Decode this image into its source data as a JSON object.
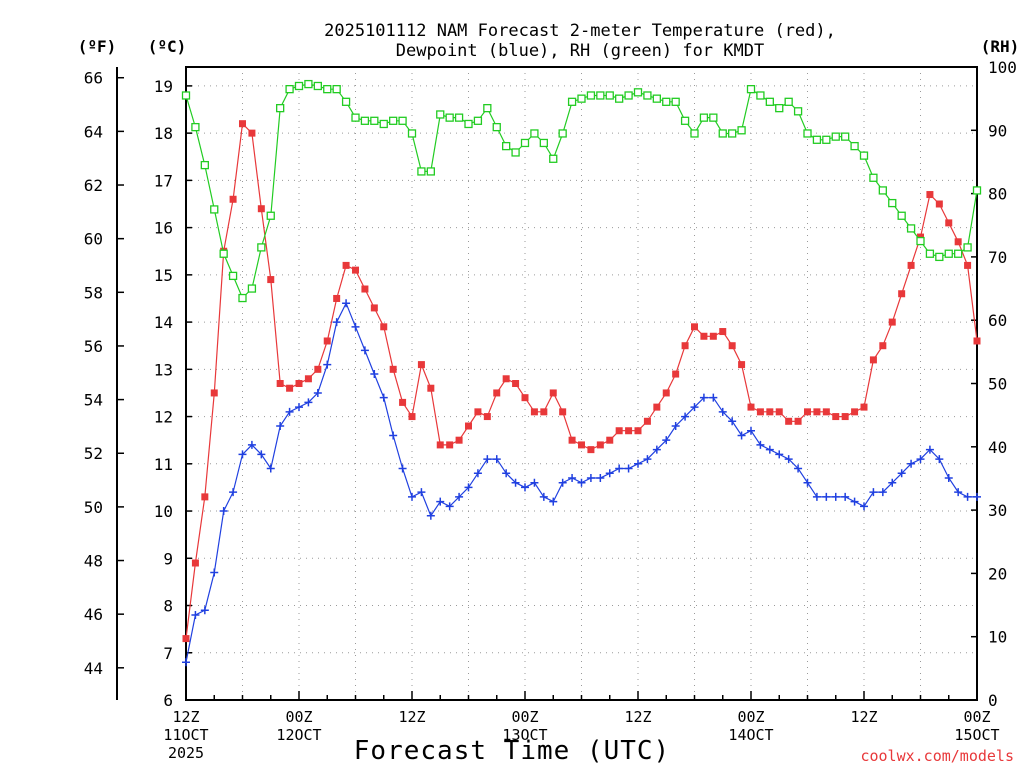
{
  "chart_data": {
    "type": "line",
    "title": "2025101112 NAM Forecast 2-meter Temperature (red),\nDewpoint (blue), RH (green) for KMDT",
    "xlabel": "Forecast Time (UTC)",
    "axes": {
      "left_outer": {
        "label": "(ºF)",
        "range": [
          42.8,
          66.4
        ],
        "ticks": [
          44,
          46,
          48,
          50,
          52,
          54,
          56,
          58,
          60,
          62,
          64,
          66
        ]
      },
      "left_inner": {
        "label": "(ºC)",
        "range": [
          6,
          19.4
        ],
        "ticks": [
          6,
          7,
          8,
          9,
          10,
          11,
          12,
          13,
          14,
          15,
          16,
          17,
          18,
          19
        ]
      },
      "right": {
        "label": "(RH)",
        "range": [
          0,
          100
        ],
        "ticks": [
          0,
          10,
          20,
          30,
          40,
          50,
          60,
          70,
          80,
          90,
          100
        ]
      }
    },
    "x_ticks": [
      {
        "hour": 0,
        "lines": [
          "12Z",
          "11OCT",
          "2025"
        ]
      },
      {
        "hour": 12,
        "lines": [
          "00Z",
          "12OCT"
        ]
      },
      {
        "hour": 24,
        "lines": [
          "12Z"
        ]
      },
      {
        "hour": 36,
        "lines": [
          "00Z",
          "13OCT"
        ]
      },
      {
        "hour": 48,
        "lines": [
          "12Z"
        ]
      },
      {
        "hour": 60,
        "lines": [
          "00Z",
          "14OCT"
        ]
      },
      {
        "hour": 72,
        "lines": [
          "12Z"
        ]
      },
      {
        "hour": 84,
        "lines": [
          "00Z",
          "15OCT"
        ]
      }
    ],
    "x_range_hours": [
      0,
      84
    ],
    "grid": true,
    "series": [
      {
        "name": "Temperature",
        "axis": "left_inner",
        "color": "#e8383a",
        "marker": "filled-square",
        "hours": [
          0,
          1,
          2,
          3,
          4,
          5,
          6,
          7,
          8,
          9,
          10,
          11,
          12,
          13,
          14,
          15,
          16,
          17,
          18,
          19,
          20,
          21,
          22,
          23,
          24,
          25,
          26,
          27,
          28,
          29,
          30,
          31,
          32,
          33,
          34,
          35,
          36,
          37,
          38,
          39,
          40,
          41,
          42,
          43,
          44,
          45,
          46,
          47,
          48,
          49,
          50,
          51,
          52,
          53,
          54,
          55,
          56,
          57,
          58,
          59,
          60,
          61,
          62,
          63,
          64,
          65,
          66,
          67,
          68,
          69,
          70,
          71,
          72,
          73,
          74,
          75,
          76,
          77,
          78,
          79,
          80,
          81,
          82,
          83,
          84
        ],
        "values": [
          7.3,
          8.9,
          10.3,
          12.5,
          15.5,
          16.6,
          18.2,
          18.0,
          16.4,
          14.9,
          12.7,
          12.6,
          12.7,
          12.8,
          13.0,
          13.6,
          14.5,
          15.2,
          15.1,
          14.7,
          14.3,
          13.9,
          13.0,
          12.3,
          12.0,
          13.1,
          12.6,
          11.4,
          11.4,
          11.5,
          11.8,
          12.1,
          12.0,
          12.5,
          12.8,
          12.7,
          12.4,
          12.1,
          12.1,
          12.5,
          12.1,
          11.5,
          11.4,
          11.3,
          11.4,
          11.5,
          11.7,
          11.7,
          11.7,
          11.9,
          12.2,
          12.5,
          12.9,
          13.5,
          13.9,
          13.7,
          13.7,
          13.8,
          13.5,
          13.1,
          12.2,
          12.1,
          12.1,
          12.1,
          11.9,
          11.9,
          12.1,
          12.1,
          12.1,
          12.0,
          12.0,
          12.1,
          12.2,
          13.2,
          13.5,
          14.0,
          14.6,
          15.2,
          15.8,
          16.7,
          16.5,
          16.1,
          15.7,
          15.2,
          13.6
        ]
      },
      {
        "name": "Dewpoint",
        "axis": "left_inner",
        "color": "#2040e0",
        "marker": "plus",
        "hours": [
          0,
          1,
          2,
          3,
          4,
          5,
          6,
          7,
          8,
          9,
          10,
          11,
          12,
          13,
          14,
          15,
          16,
          17,
          18,
          19,
          20,
          21,
          22,
          23,
          24,
          25,
          26,
          27,
          28,
          29,
          30,
          31,
          32,
          33,
          34,
          35,
          36,
          37,
          38,
          39,
          40,
          41,
          42,
          43,
          44,
          45,
          46,
          47,
          48,
          49,
          50,
          51,
          52,
          53,
          54,
          55,
          56,
          57,
          58,
          59,
          60,
          61,
          62,
          63,
          64,
          65,
          66,
          67,
          68,
          69,
          70,
          71,
          72,
          73,
          74,
          75,
          76,
          77,
          78,
          79,
          80,
          81,
          82,
          83,
          84
        ],
        "values": [
          6.8,
          7.8,
          7.9,
          8.7,
          10.0,
          10.4,
          11.2,
          11.4,
          11.2,
          10.9,
          11.8,
          12.1,
          12.2,
          12.3,
          12.5,
          13.1,
          14.0,
          14.4,
          13.9,
          13.4,
          12.9,
          12.4,
          11.6,
          10.9,
          10.3,
          10.4,
          9.9,
          10.2,
          10.1,
          10.3,
          10.5,
          10.8,
          11.1,
          11.1,
          10.8,
          10.6,
          10.5,
          10.6,
          10.3,
          10.2,
          10.6,
          10.7,
          10.6,
          10.7,
          10.7,
          10.8,
          10.9,
          10.9,
          11.0,
          11.1,
          11.3,
          11.5,
          11.8,
          12.0,
          12.2,
          12.4,
          12.4,
          12.1,
          11.9,
          11.6,
          11.7,
          11.4,
          11.3,
          11.2,
          11.1,
          10.9,
          10.6,
          10.3,
          10.3,
          10.3,
          10.3,
          10.2,
          10.1,
          10.4,
          10.4,
          10.6,
          10.8,
          11.0,
          11.1,
          11.3,
          11.1,
          10.7,
          10.4,
          10.3,
          10.3
        ]
      },
      {
        "name": "RH",
        "axis": "right",
        "color": "#22cc22",
        "marker": "open-square",
        "hours": [
          0,
          1,
          2,
          3,
          4,
          5,
          6,
          7,
          8,
          9,
          10,
          11,
          12,
          13,
          14,
          15,
          16,
          17,
          18,
          19,
          20,
          21,
          22,
          23,
          24,
          25,
          26,
          27,
          28,
          29,
          30,
          31,
          32,
          33,
          34,
          35,
          36,
          37,
          38,
          39,
          40,
          41,
          42,
          43,
          44,
          45,
          46,
          47,
          48,
          49,
          50,
          51,
          52,
          53,
          54,
          55,
          56,
          57,
          58,
          59,
          60,
          61,
          62,
          63,
          64,
          65,
          66,
          67,
          68,
          69,
          70,
          71,
          72,
          73,
          74,
          75,
          76,
          77,
          78,
          79,
          80,
          81,
          82,
          83,
          84
        ],
        "values": [
          95.5,
          90.5,
          84.5,
          77.5,
          70.5,
          67.0,
          63.5,
          65.0,
          71.5,
          76.5,
          93.5,
          96.5,
          97.0,
          97.3,
          97.0,
          96.5,
          96.5,
          94.5,
          92.0,
          91.5,
          91.5,
          91.0,
          91.5,
          91.5,
          89.5,
          83.5,
          83.5,
          92.5,
          92.0,
          92.0,
          91.0,
          91.5,
          93.5,
          90.5,
          87.5,
          86.5,
          88.0,
          89.5,
          88.0,
          85.5,
          89.5,
          94.5,
          95.0,
          95.5,
          95.5,
          95.5,
          95.0,
          95.5,
          96.0,
          95.5,
          95.0,
          94.5,
          94.5,
          91.5,
          89.5,
          92.0,
          92.0,
          89.5,
          89.5,
          90.0,
          96.5,
          95.5,
          94.5,
          93.5,
          94.5,
          93.0,
          89.5,
          88.5,
          88.5,
          89.0,
          89.0,
          87.5,
          86.0,
          82.5,
          80.5,
          78.5,
          76.5,
          74.5,
          72.5,
          70.5,
          70.0,
          70.5,
          70.5,
          71.5,
          80.5
        ]
      }
    ]
  },
  "credit": "coolwx.com/models"
}
